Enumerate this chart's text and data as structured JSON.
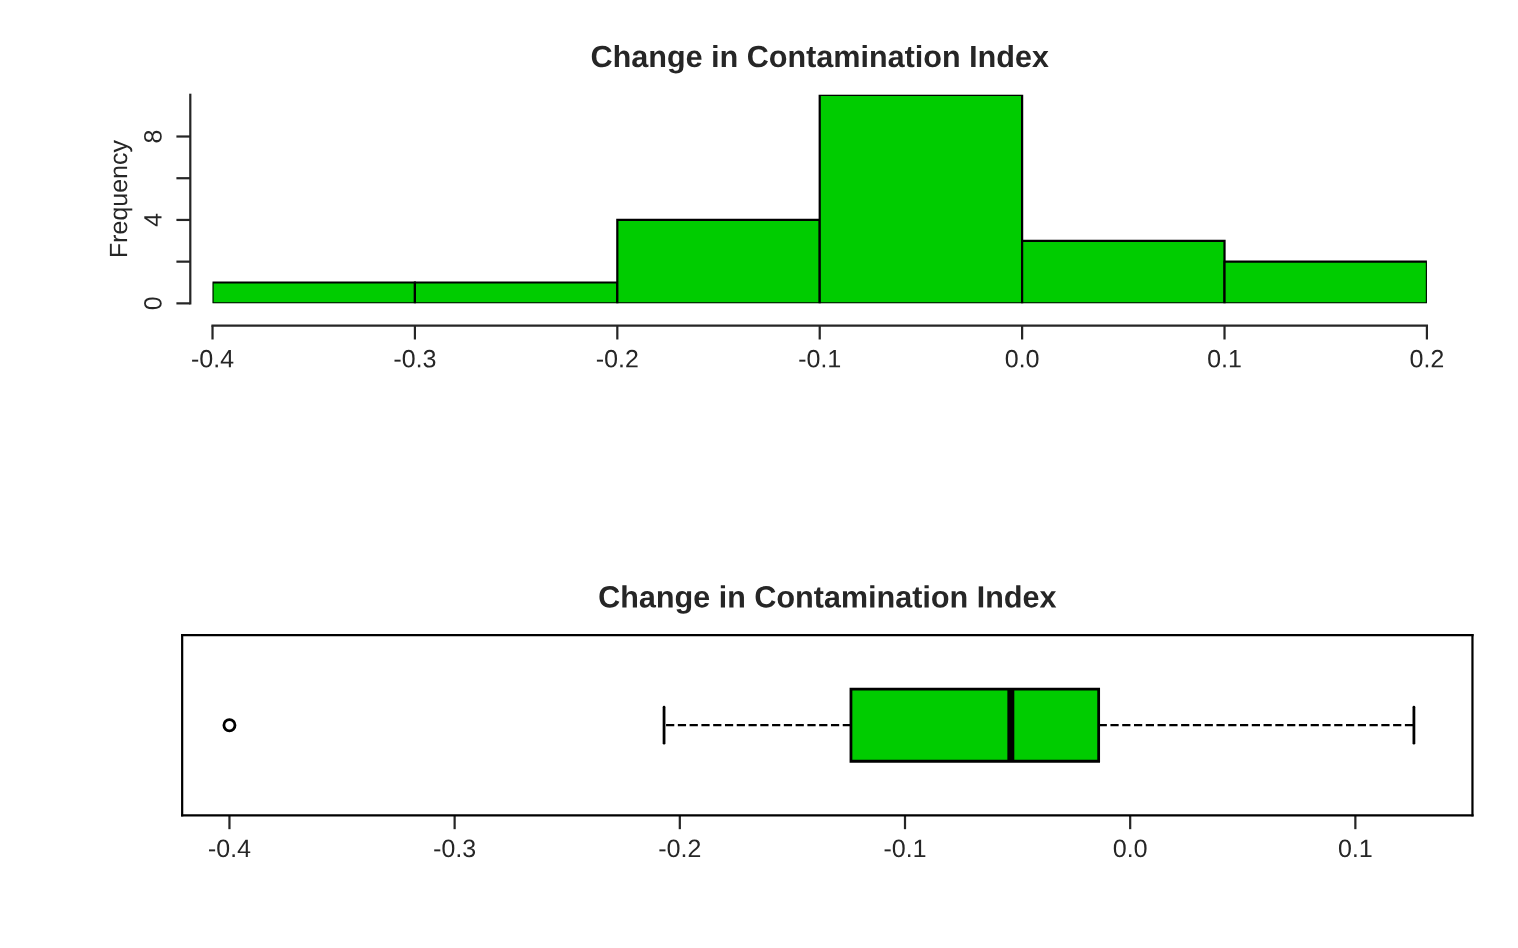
{
  "chart_data": [
    {
      "type": "histogram",
      "title": "Change in Contamination Index",
      "ylabel": "Frequency",
      "color": "#00cc00",
      "bins": [
        -0.4,
        -0.3,
        -0.2,
        -0.1,
        0.0,
        0.1,
        0.2
      ],
      "values": [
        1,
        1,
        4,
        10,
        3,
        2
      ],
      "xlim": [
        -0.4,
        0.2
      ],
      "xticks": [
        -0.4,
        -0.3,
        -0.2,
        -0.1,
        {
          "value": 0.0,
          "label": "0.0"
        },
        0.1,
        0.2
      ],
      "ylim": [
        0,
        10
      ],
      "yticks": [
        0,
        {
          "value": 2,
          "label": null
        },
        4,
        {
          "value": 6,
          "label": null
        },
        8
      ],
      "grid": false
    },
    {
      "type": "box",
      "title": "Change in Contamination Index",
      "color": "#00cc00",
      "orientation": "horizontal",
      "boxes": [
        {
          "low": -0.207,
          "q1": -0.124,
          "median": -0.053,
          "q3": -0.014,
          "high": 0.126,
          "outliers": [
            -0.4
          ]
        }
      ],
      "xlim": [
        -0.421,
        0.152
      ],
      "xticks": [
        -0.4,
        -0.3,
        -0.2,
        -0.1,
        {
          "value": 0.0,
          "label": "0.0"
        },
        0.1
      ],
      "tick_labels": "x",
      "grid": false
    }
  ]
}
